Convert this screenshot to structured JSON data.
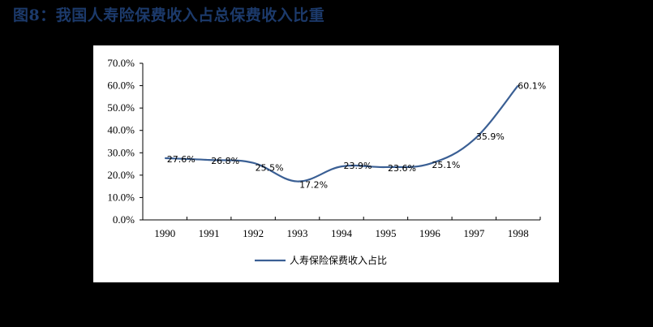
{
  "header": {
    "title": "图8：我国人寿险保费收入占总保费收入比重"
  },
  "colors": {
    "background": "#000000",
    "plot_background": "#ffffff",
    "title": "#1c3a6b",
    "series": "#3a5f94",
    "axis": "#000000"
  },
  "chart_data": {
    "type": "line",
    "title": "我国人寿险保费收入占总保费收入比重",
    "xlabel": "",
    "ylabel": "",
    "categories": [
      "1990",
      "1991",
      "1992",
      "1993",
      "1994",
      "1995",
      "1996",
      "1997",
      "1998"
    ],
    "series": [
      {
        "name": "人寿保险保费收入占比",
        "values": [
          27.6,
          26.8,
          25.5,
          17.2,
          23.9,
          23.6,
          25.1,
          35.9,
          60.1
        ],
        "labels": [
          "27.6%",
          "26.8%",
          "25.5%",
          "17.2%",
          "23.9%",
          "23.6%",
          "25.1%",
          "35.9%",
          "60.1%"
        ],
        "smooth": true
      }
    ],
    "ylim": [
      0,
      70
    ],
    "yticks": [
      "0.0%",
      "10.0%",
      "20.0%",
      "30.0%",
      "40.0%",
      "50.0%",
      "60.0%",
      "70.0%"
    ],
    "grid": false,
    "legend_position": "bottom"
  }
}
